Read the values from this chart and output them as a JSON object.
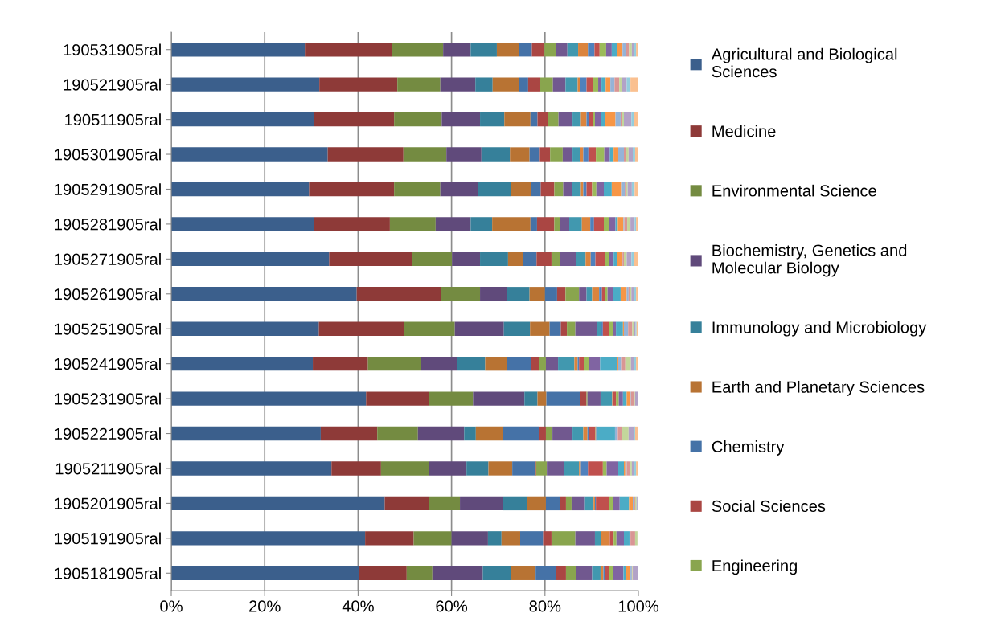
{
  "chart_data": {
    "type": "bar",
    "orientation": "horizontal",
    "stacked": true,
    "categories": [
      "190531905ral",
      "190521905ral",
      "190511905ral",
      "1905301905ral",
      "1905291905ral",
      "1905281905ral",
      "1905271905ral",
      "1905261905ral",
      "1905251905ral",
      "1905241905ral",
      "1905231905ral",
      "1905221905ral",
      "1905211905ral",
      "1905201905ral",
      "1905191905ral",
      "1905181905ral"
    ],
    "xlim": [
      0,
      100
    ],
    "xticks": [
      {
        "value": 0,
        "label": "0%"
      },
      {
        "value": 20,
        "label": "20%"
      },
      {
        "value": 40,
        "label": "40%"
      },
      {
        "value": 60,
        "label": "60%"
      },
      {
        "value": 80,
        "label": "80%"
      },
      {
        "value": 100,
        "label": "100%"
      }
    ],
    "grid": "x",
    "legend": "right",
    "series": [
      {
        "name": "Agricultural and Biological Sciences",
        "color": "#3b5f8c",
        "values": [
          28.6,
          31.7,
          30.6,
          33.5,
          29.5,
          30.6,
          33.8,
          39.7,
          31.6,
          30.3,
          41.7,
          32.0,
          34.3,
          45.7,
          41.5,
          40.2
        ]
      },
      {
        "name": "Medicine",
        "color": "#8e3a38",
        "values": [
          18.6,
          16.7,
          17.1,
          16.2,
          18.2,
          16.2,
          17.8,
          18.1,
          18.3,
          11.8,
          13.4,
          12.1,
          10.6,
          9.4,
          10.4,
          10.2
        ]
      },
      {
        "name": "Environmental Science",
        "color": "#748b41",
        "values": [
          11.0,
          9.2,
          10.2,
          9.2,
          9.9,
          9.8,
          8.5,
          8.3,
          10.8,
          11.3,
          9.5,
          8.7,
          10.3,
          6.7,
          8.1,
          5.5
        ]
      },
      {
        "name": "Biochemistry, Genetics and Molecular Biology",
        "color": "#604a7b",
        "values": [
          5.9,
          7.5,
          8.2,
          7.5,
          8.0,
          7.5,
          6.0,
          5.8,
          10.5,
          7.8,
          11.0,
          9.9,
          8.0,
          9.2,
          7.8,
          10.8
        ]
      },
      {
        "name": "Immunology and Microbiology",
        "color": "#36809a",
        "values": [
          5.6,
          3.7,
          5.2,
          6.1,
          7.2,
          4.6,
          6.0,
          4.8,
          5.6,
          6.0,
          2.8,
          2.5,
          4.7,
          5.1,
          2.9,
          6.1
        ]
      },
      {
        "name": "Earth and Planetary Sciences",
        "color": "#b87333",
        "values": [
          4.8,
          5.7,
          5.6,
          4.2,
          4.2,
          8.2,
          3.2,
          3.3,
          4.2,
          4.6,
          1.9,
          5.8,
          5.1,
          4.1,
          4.0,
          5.2
        ]
      },
      {
        "name": "Chemistry",
        "color": "#4572a7",
        "values": [
          2.7,
          1.9,
          1.5,
          2.2,
          2.1,
          1.4,
          2.9,
          2.6,
          2.4,
          5.2,
          7.3,
          7.7,
          4.8,
          3.0,
          4.9,
          4.3
        ]
      },
      {
        "name": "Social Sciences",
        "color": "#aa4643",
        "values": [
          2.7,
          2.6,
          2.2,
          2.2,
          2.9,
          3.7,
          3.2,
          1.8,
          1.3,
          1.8,
          1.3,
          1.5,
          0.3,
          1.3,
          1.8,
          2.2
        ]
      },
      {
        "name": "Engineering",
        "color": "#89a54e",
        "values": [
          2.5,
          2.7,
          2.3,
          2.7,
          1.9,
          1.2,
          1.8,
          2.9,
          1.8,
          1.4,
          0.2,
          1.4,
          2.3,
          1.2,
          5.1,
          2.2
        ]
      },
      {
        "color": "#71588f",
        "values": [
          2.4,
          2.7,
          3.0,
          2.1,
          1.9,
          2.0,
          3.4,
          1.6,
          4.7,
          2.6,
          2.8,
          4.3,
          3.6,
          2.7,
          4.2,
          3.4
        ]
      },
      {
        "color": "#4198af",
        "values": [
          2.3,
          2.6,
          1.8,
          1.6,
          1.9,
          2.7,
          2.1,
          1.2,
          0.8,
          3.5,
          2.5,
          2.3,
          3.3,
          2.0,
          1.3,
          1.8
        ]
      },
      {
        "color": "#db843d",
        "values": [
          2.1,
          0.5,
          1.2,
          0.7,
          0.5,
          1.8,
          1.1,
          1.5,
          null,
          0.7,
          0.1,
          0.9,
          0.4,
          0.3,
          1.9,
          0.6
        ]
      },
      {
        "color": "#4f81bd",
        "values": [
          1.4,
          1.4,
          0.5,
          1.1,
          0.7,
          0.8,
          1.0,
          0.6,
          0.4,
          0.3,
          0.1,
          0.3,
          1.5,
          0.2,
          null,
          0.3
        ]
      },
      {
        "color": "#c0504d",
        "values": [
          1.1,
          1.3,
          0.8,
          1.6,
          1.2,
          2.1,
          2.0,
          0.7,
          1.4,
          1.0,
          0.6,
          1.4,
          3.2,
          2.8,
          0.8,
          0.9
        ]
      },
      {
        "color": "#9bbb59",
        "values": [
          1.4,
          1.2,
          0.5,
          1.8,
          0.9,
          1.1,
          0.9,
          0.5,
          0.8,
          1.2,
          0.6,
          0.1,
          0.8,
          0.8,
          0.6,
          0.9
        ]
      },
      {
        "color": "#8064a2",
        "values": [
          1.2,
          0.7,
          1.3,
          1.2,
          1.6,
          1.4,
          1.0,
          1.2,
          0.6,
          2.3,
          0.9,
          0.1,
          2.5,
          1.5,
          1.6,
          2.2
        ]
      },
      {
        "color": "#4bacc6",
        "values": [
          1.2,
          0.9,
          0.9,
          0.8,
          1.7,
          0.5,
          0.8,
          1.6,
          1.5,
          3.7,
          0.8,
          4.0,
          1.2,
          2.0,
          1.2,
          0.6
        ]
      },
      {
        "color": "#f79646",
        "values": [
          1.1,
          1.0,
          2.2,
          1.0,
          2.0,
          1.2,
          0.9,
          1.3,
          0.2,
          0.2,
          0.8,
          null,
          0.3,
          0.8,
          null,
          0.9
        ]
      },
      {
        "color": "#95b3d7",
        "values": [
          0.7,
          0.9,
          1.1,
          1.2,
          0.8,
          0.2,
          0.2,
          0.4,
          0.9,
          0.6,
          0.1,
          0.6,
          0.3,
          0.3,
          0.2,
          0.3
        ]
      },
      {
        "color": "#d99694",
        "values": [
          0.7,
          1.0,
          0.2,
          0.4,
          0.3,
          0.6,
          0.3,
          0.2,
          0.9,
          0.9,
          0.8,
          0.8,
          0.8,
          0.2,
          1.0,
          0.1
        ]
      },
      {
        "color": "#c3d69b",
        "values": [
          0.6,
          0.5,
          0.5,
          0.6,
          0.3,
          0.7,
          0.6,
          0.4,
          0.4,
          1.2,
          0.1,
          1.5,
          0.3,
          0.3,
          0.5,
          0.1
        ]
      },
      {
        "color": "#b2a2c7",
        "values": [
          0.5,
          1.1,
          1.6,
          0.9,
          0.9,
          0.9,
          1.0,
          0.6,
          0.3,
          0.7,
          0.7,
          1.1,
          0.5,
          0.2,
          0,
          1.2
        ]
      },
      {
        "color": "#93cddd",
        "values": [
          0.4,
          0.8,
          0.6,
          0.5,
          0.6,
          0.3,
          0.5,
          0.4,
          0.2,
          0.4,
          0,
          0.3,
          0.4,
          0.1,
          0,
          0
        ]
      },
      {
        "color": "#fac090",
        "values": [
          0.5,
          1.7,
          0.9,
          0.7,
          0.8,
          0.5,
          1.0,
          0.5,
          0.3,
          0.5,
          0,
          0.6,
          0.5,
          0.1,
          0,
          0
        ]
      }
    ]
  }
}
